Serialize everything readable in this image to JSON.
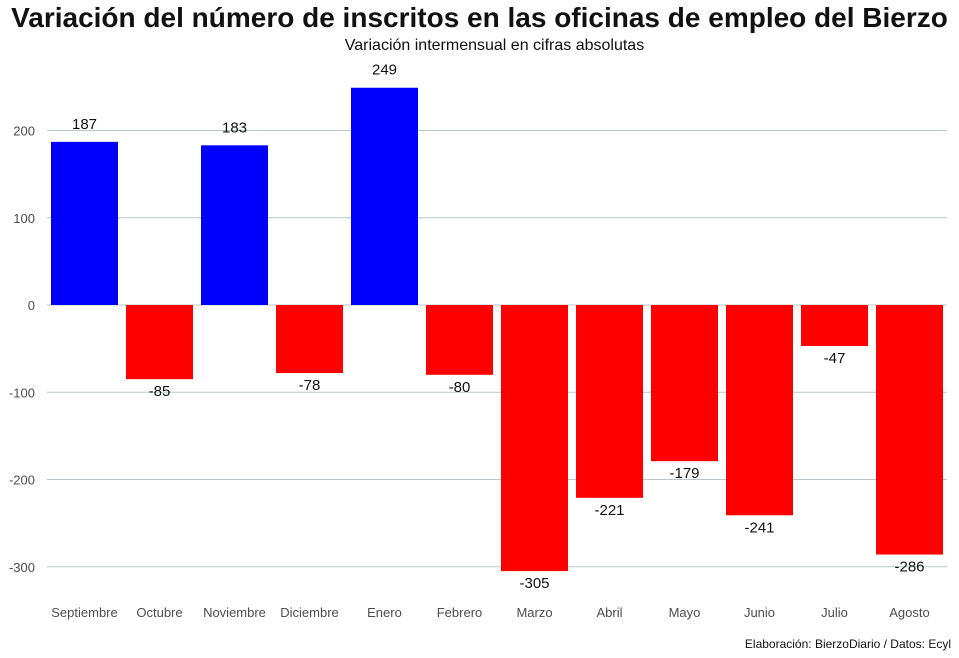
{
  "chart_data": {
    "type": "bar",
    "title": "Variación del número de inscritos en las oficinas de empleo del Bierzo",
    "subtitle": "Variación intermensual en cifras absolutas",
    "caption": "Elaboración: BierzoDiario / Datos: Ecyl",
    "categories": [
      "Septiembre",
      "Octubre",
      "Noviembre",
      "Diciembre",
      "Enero",
      "Febrero",
      "Marzo",
      "Abril",
      "Mayo",
      "Junio",
      "Julio",
      "Agosto"
    ],
    "values": [
      187,
      -85,
      183,
      -78,
      249,
      -80,
      -305,
      -221,
      -179,
      -241,
      -47,
      -286
    ],
    "data_labels": [
      "187",
      "-85",
      "183",
      "-78",
      "249",
      "-80",
      "-305",
      "-221",
      "-179",
      "-241",
      "-47",
      "-286"
    ],
    "yticks": [
      -300,
      -200,
      -100,
      0,
      100,
      200
    ],
    "ytick_labels": [
      "-300",
      "-200",
      "-100",
      "0",
      "100",
      "200"
    ],
    "ylim": [
      -330,
      280
    ],
    "grid": true,
    "colors": {
      "positive": "#0000ff",
      "negative": "#ff0000",
      "grid": "#b8c8c8",
      "axis_text": "#4d4d4d"
    }
  }
}
